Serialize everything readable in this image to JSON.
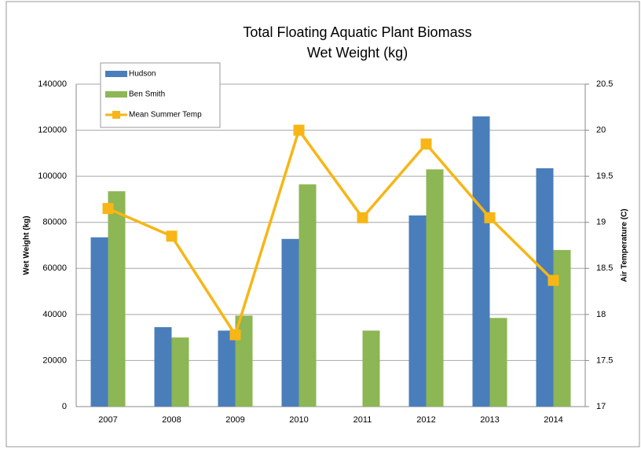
{
  "chart_data": {
    "type": "bar_line",
    "title": "Total Floating Aquatic Plant Biomass",
    "subtitle": "Wet Weight (kg)",
    "y_label": "Wet Weight (kg)",
    "y2_label": "Air Temperature (C)",
    "categories": [
      "2007",
      "2008",
      "2009",
      "2010",
      "2011",
      "2012",
      "2013",
      "2014"
    ],
    "series": [
      {
        "name": "Hudson",
        "color": "#4a7ebb",
        "type": "bar",
        "values": [
          73500,
          34500,
          33000,
          72800,
          null,
          83000,
          126000,
          103500
        ]
      },
      {
        "name": "Ben Smith",
        "color": "#8db654",
        "type": "bar",
        "values": [
          93500,
          30000,
          39500,
          96500,
          33000,
          103000,
          38500,
          68000
        ]
      },
      {
        "name": "Mean Summer Temp",
        "color": "#f7b616",
        "type": "line",
        "axis": "y2",
        "values": [
          19.15,
          18.85,
          17.78,
          20.0,
          19.05,
          19.85,
          19.05,
          18.37
        ]
      }
    ],
    "ylim": [
      0,
      140000
    ],
    "yticks": [
      0,
      20000,
      40000,
      60000,
      80000,
      100000,
      120000,
      140000
    ],
    "y2lim": [
      17,
      20.5
    ],
    "y2ticks": [
      17,
      17.5,
      18,
      18.5,
      19,
      19.5,
      20,
      20.5
    ],
    "grid": true,
    "legend": "top-left"
  }
}
